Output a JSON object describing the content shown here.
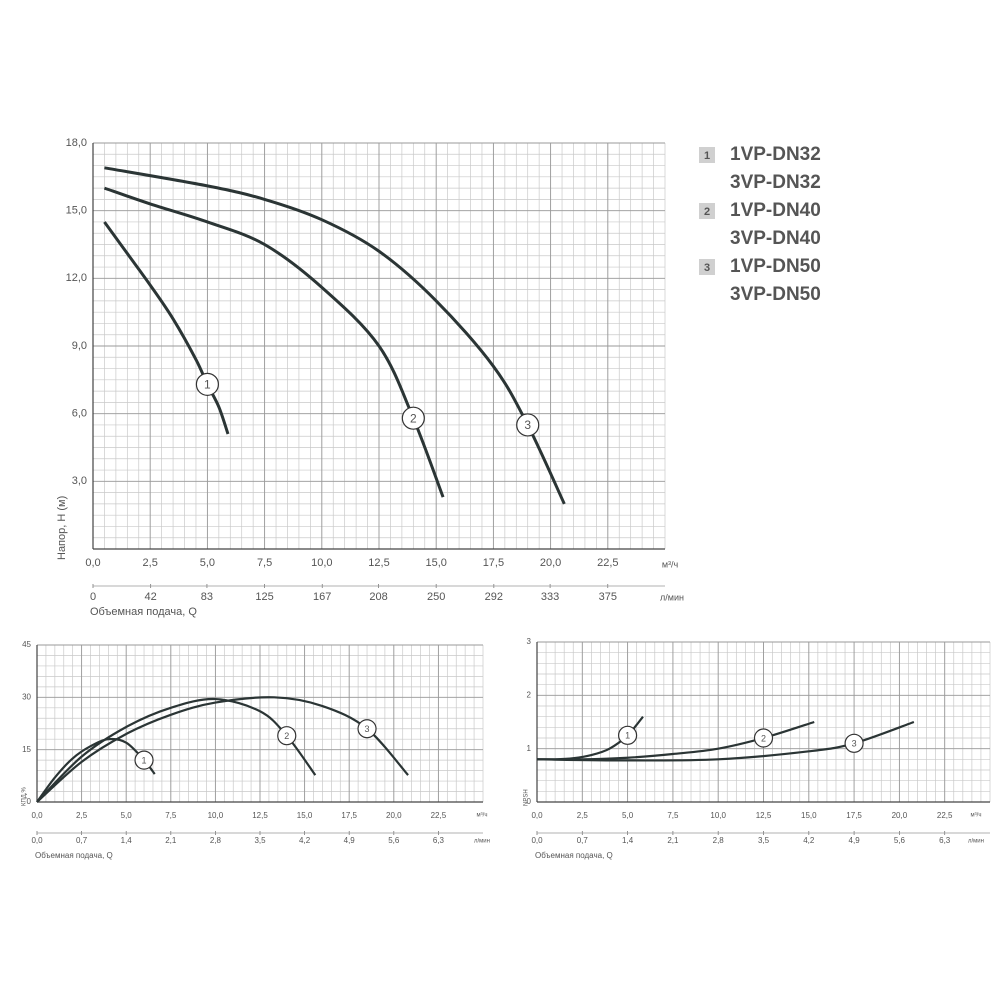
{
  "chart_data": [
    {
      "type": "line",
      "ylabel": "Напор, H (м)",
      "xlabel": "Объемная подача, Q",
      "x_unit": "м³/ч",
      "x2_unit": "л/мин",
      "xlim": [
        0,
        25
      ],
      "xticks": [
        {
          "value": 0,
          "label": "0,0"
        },
        {
          "value": 2.5,
          "label": "2,5"
        },
        {
          "value": 5,
          "label": "5,0"
        },
        {
          "value": 7.5,
          "label": "7,5"
        },
        {
          "value": 10,
          "label": "10,0"
        },
        {
          "value": 12.5,
          "label": "12,5"
        },
        {
          "value": 15,
          "label": "15,0"
        },
        {
          "value": 17.5,
          "label": "17,5"
        },
        {
          "value": 20,
          "label": "20,0"
        },
        {
          "value": 22.5,
          "label": "22,5"
        }
      ],
      "x2lim": [
        0,
        416.7
      ],
      "x2ticks": [
        0,
        42,
        83,
        125,
        167,
        208,
        250,
        292,
        333,
        375
      ],
      "ylim": [
        0,
        18
      ],
      "yticks": [
        {
          "value": 3,
          "label": "3,0"
        },
        {
          "value": 6,
          "label": "6,0"
        },
        {
          "value": 9,
          "label": "9,0"
        },
        {
          "value": 12,
          "label": "12,0"
        },
        {
          "value": 15,
          "label": "15,0"
        },
        {
          "value": 18,
          "label": "18,0"
        }
      ],
      "grid": true,
      "series": [
        {
          "name": "1",
          "color": "#2b3535",
          "x": [
            0.5,
            1.5,
            2.5,
            3.5,
            4.5,
            5.0,
            5.5,
            5.9
          ],
          "values": [
            14.5,
            13.1,
            11.7,
            10.2,
            8.4,
            7.3,
            6.3,
            5.1
          ]
        },
        {
          "name": "2",
          "color": "#2b3535",
          "x": [
            0.5,
            2.5,
            5,
            7.5,
            10,
            12.5,
            14,
            15.3
          ],
          "values": [
            16.0,
            15.3,
            14.5,
            13.5,
            11.6,
            9.0,
            5.8,
            2.3
          ]
        },
        {
          "name": "3",
          "color": "#2b3535",
          "x": [
            0.5,
            5,
            7.5,
            10,
            12.5,
            15,
            17.5,
            19,
            20.6
          ],
          "values": [
            16.9,
            16.1,
            15.5,
            14.6,
            13.2,
            11.0,
            8.1,
            5.5,
            2.0
          ]
        }
      ],
      "legend": [
        {
          "number": "1",
          "models": [
            "1VP-DN32",
            "3VP-DN32"
          ]
        },
        {
          "number": "2",
          "models": [
            "1VP-DN40",
            "3VP-DN40"
          ]
        },
        {
          "number": "3",
          "models": [
            "1VP-DN50",
            "3VP-DN50"
          ]
        }
      ]
    },
    {
      "type": "line",
      "ylabel": "КПД,%",
      "xlabel": "Объемная подача, Q",
      "x_unit": "м³/ч",
      "x2_unit": "л/мин",
      "xlim": [
        0,
        25
      ],
      "xticks": [
        {
          "value": 0,
          "label": "0,0"
        },
        {
          "value": 2.5,
          "label": "2,5"
        },
        {
          "value": 5,
          "label": "5,0"
        },
        {
          "value": 7.5,
          "label": "7,5"
        },
        {
          "value": 10,
          "label": "10,0"
        },
        {
          "value": 12.5,
          "label": "12,5"
        },
        {
          "value": 15,
          "label": "15,0"
        },
        {
          "value": 17.5,
          "label": "17,5"
        },
        {
          "value": 20,
          "label": "20,0"
        },
        {
          "value": 22.5,
          "label": "22,5"
        }
      ],
      "x2lim": [
        0,
        7
      ],
      "x2ticks": [
        {
          "value": 0,
          "label": "0,0"
        },
        {
          "value": 0.7,
          "label": "0,7"
        },
        {
          "value": 1.4,
          "label": "1,4"
        },
        {
          "value": 2.1,
          "label": "2,1"
        },
        {
          "value": 2.8,
          "label": "2,8"
        },
        {
          "value": 3.5,
          "label": "3,5"
        },
        {
          "value": 4.2,
          "label": "4,2"
        },
        {
          "value": 4.9,
          "label": "4,9"
        },
        {
          "value": 5.6,
          "label": "5,6"
        },
        {
          "value": 6.3,
          "label": "6,3"
        }
      ],
      "ylim": [
        0,
        45
      ],
      "yticks": [
        0,
        15,
        30,
        45
      ],
      "grid": true,
      "series": [
        {
          "name": "1",
          "color": "#2b3535",
          "x": [
            0,
            1,
            2,
            3,
            4,
            5,
            6,
            6.6
          ],
          "values": [
            0,
            7,
            12.5,
            16,
            18,
            17,
            12,
            8
          ]
        },
        {
          "name": "2",
          "color": "#2b3535",
          "x": [
            0,
            2.5,
            5,
            7.5,
            10,
            12.5,
            14,
            15.6
          ],
          "values": [
            0,
            13,
            21.5,
            27,
            29.5,
            26,
            19,
            7.7
          ]
        },
        {
          "name": "3",
          "color": "#2b3535",
          "x": [
            0,
            2.5,
            5,
            7.5,
            10,
            13.3,
            16,
            18.5,
            20.8
          ],
          "values": [
            0,
            11.5,
            19.5,
            25,
            28.5,
            30,
            27.5,
            21,
            7.7
          ]
        }
      ]
    },
    {
      "type": "line",
      "ylabel": "NPSH",
      "xlabel": "Объемная подача, Q",
      "x_unit": "м³/ч",
      "x2_unit": "л/мин",
      "xlim": [
        0,
        25
      ],
      "xticks": [
        {
          "value": 0,
          "label": "0,0"
        },
        {
          "value": 2.5,
          "label": "2,5"
        },
        {
          "value": 5,
          "label": "5,0"
        },
        {
          "value": 7.5,
          "label": "7,5"
        },
        {
          "value": 10,
          "label": "10,0"
        },
        {
          "value": 12.5,
          "label": "12,5"
        },
        {
          "value": 15,
          "label": "15,0"
        },
        {
          "value": 17.5,
          "label": "17,5"
        },
        {
          "value": 20,
          "label": "20,0"
        },
        {
          "value": 22.5,
          "label": "22,5"
        }
      ],
      "x2lim": [
        0,
        7
      ],
      "x2ticks": [
        {
          "value": 0,
          "label": "0,0"
        },
        {
          "value": 0.7,
          "label": "0,7"
        },
        {
          "value": 1.4,
          "label": "1,4"
        },
        {
          "value": 2.1,
          "label": "2,1"
        },
        {
          "value": 2.8,
          "label": "2,8"
        },
        {
          "value": 3.5,
          "label": "3,5"
        },
        {
          "value": 4.2,
          "label": "4,2"
        },
        {
          "value": 4.9,
          "label": "4,9"
        },
        {
          "value": 5.6,
          "label": "5,6"
        },
        {
          "value": 6.3,
          "label": "6,3"
        }
      ],
      "ylim": [
        0,
        3
      ],
      "yticks": [
        0,
        1,
        2,
        3
      ],
      "grid": true,
      "series": [
        {
          "name": "1",
          "color": "#2b3535",
          "x": [
            0,
            1,
            2,
            3,
            4,
            5,
            5.85
          ],
          "values": [
            0.8,
            0.8,
            0.82,
            0.88,
            1.0,
            1.25,
            1.6
          ]
        },
        {
          "name": "2",
          "color": "#2b3535",
          "x": [
            0,
            2.5,
            5,
            7.5,
            10,
            12.5,
            15.3
          ],
          "values": [
            0.8,
            0.8,
            0.83,
            0.9,
            1.0,
            1.2,
            1.5
          ]
        },
        {
          "name": "3",
          "color": "#2b3535",
          "x": [
            0,
            5,
            10,
            15,
            17.5,
            20.8
          ],
          "values": [
            0.8,
            0.78,
            0.8,
            0.95,
            1.1,
            1.5
          ]
        }
      ]
    }
  ]
}
